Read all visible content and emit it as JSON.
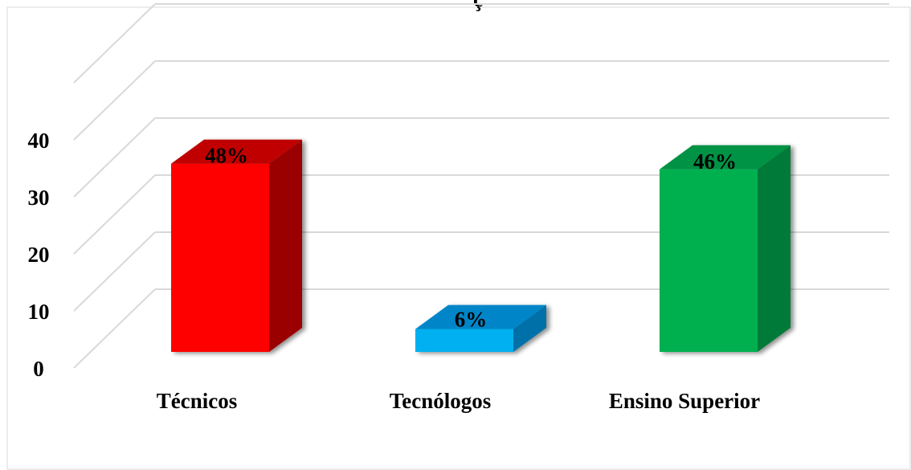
{
  "chart_data": {
    "type": "bar",
    "title": "ç",
    "categories": [
      "Técnicos",
      "Tecnólogos",
      "Ensino Superior"
    ],
    "values": [
      33,
      4,
      32
    ],
    "data_labels": [
      "48%",
      "6%",
      "46%"
    ],
    "ylim": [
      0,
      50
    ],
    "yticks": [
      "0",
      "10",
      "20",
      "30",
      "40"
    ],
    "xlabel": "",
    "ylabel": "",
    "grid": true,
    "legend": "none",
    "colors": {
      "front": [
        "#ff0000",
        "#00b0f0",
        "#00b050"
      ],
      "side": [
        "#9a0000",
        "#0070a8",
        "#007a38"
      ],
      "top": [
        "#c00000",
        "#0086c8",
        "#009244"
      ]
    }
  }
}
